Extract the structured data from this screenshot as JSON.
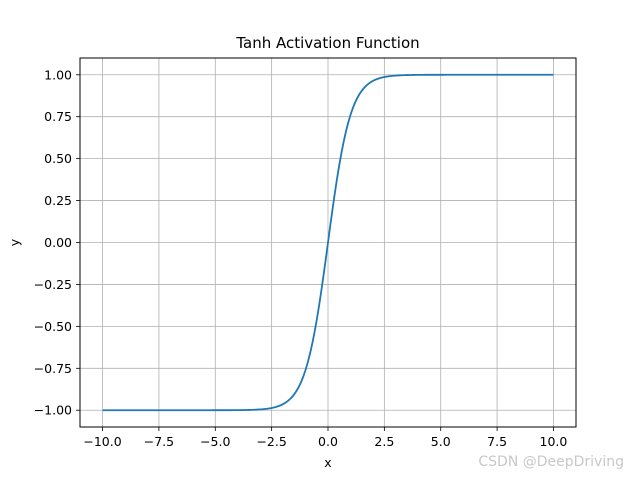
{
  "chart_data": {
    "type": "line",
    "title": "Tanh Activation Function",
    "xlabel": "x",
    "ylabel": "y",
    "xlim": [
      -11.0,
      11.0
    ],
    "ylim": [
      -1.1,
      1.1
    ],
    "grid": true,
    "function": "tanh(x)",
    "x_domain": [
      -10,
      10
    ],
    "x_step": 0.1,
    "x_ticks": [
      "−10.0",
      "−7.5",
      "−5.0",
      "−2.5",
      "0.0",
      "2.5",
      "5.0",
      "7.5",
      "10.0"
    ],
    "y_ticks": [
      "−1.00",
      "−0.75",
      "−0.50",
      "−0.25",
      "0.00",
      "0.25",
      "0.50",
      "0.75",
      "1.00"
    ],
    "series": [
      {
        "color": "#1f77b4"
      }
    ]
  },
  "watermark": "CSDN @DeepDriving"
}
